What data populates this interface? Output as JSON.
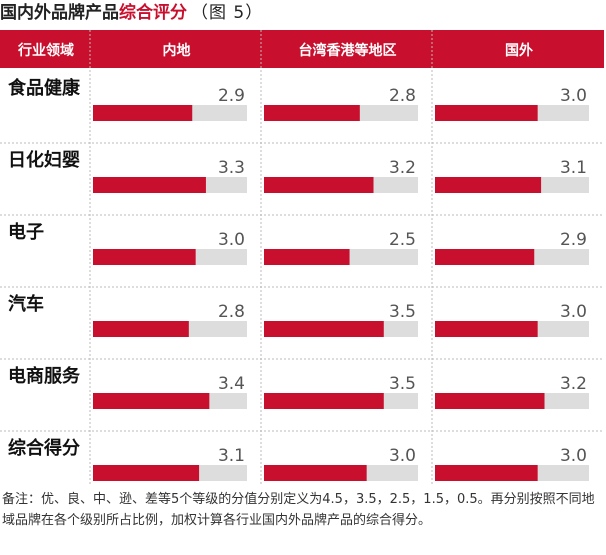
{
  "title": {
    "prefix": "国内外品牌产品",
    "accent": "综合评分",
    "figure": "（图 5）"
  },
  "colors": {
    "accent": "#c8102e",
    "bar_track": "#dddddd",
    "header_bg": "#c8102e",
    "header_text": "#ffffff"
  },
  "chart_data": {
    "type": "bar",
    "orientation": "horizontal",
    "row_header": "行业领域",
    "xlim": [
      0,
      4.5
    ],
    "categories": [
      "食品健康",
      "日化妇婴",
      "电子",
      "汽车",
      "电商服务",
      "综合得分"
    ],
    "series": [
      {
        "name": "内地",
        "values": [
          2.9,
          3.3,
          3.0,
          2.8,
          3.4,
          3.1
        ]
      },
      {
        "name": "台湾香港等地区",
        "values": [
          2.8,
          3.2,
          2.5,
          3.5,
          3.5,
          3.0
        ]
      },
      {
        "name": "国外",
        "values": [
          3.0,
          3.1,
          2.9,
          3.0,
          3.2,
          3.0
        ]
      }
    ]
  },
  "note": "备注：优、良、中、逊、差等5个等级的分值分别定义为4.5，3.5，2.5，1.5，0.5。再分别按照不同地域品牌在各个级别所占比例，加权计算各行业国内外品牌产品的综合得分。"
}
